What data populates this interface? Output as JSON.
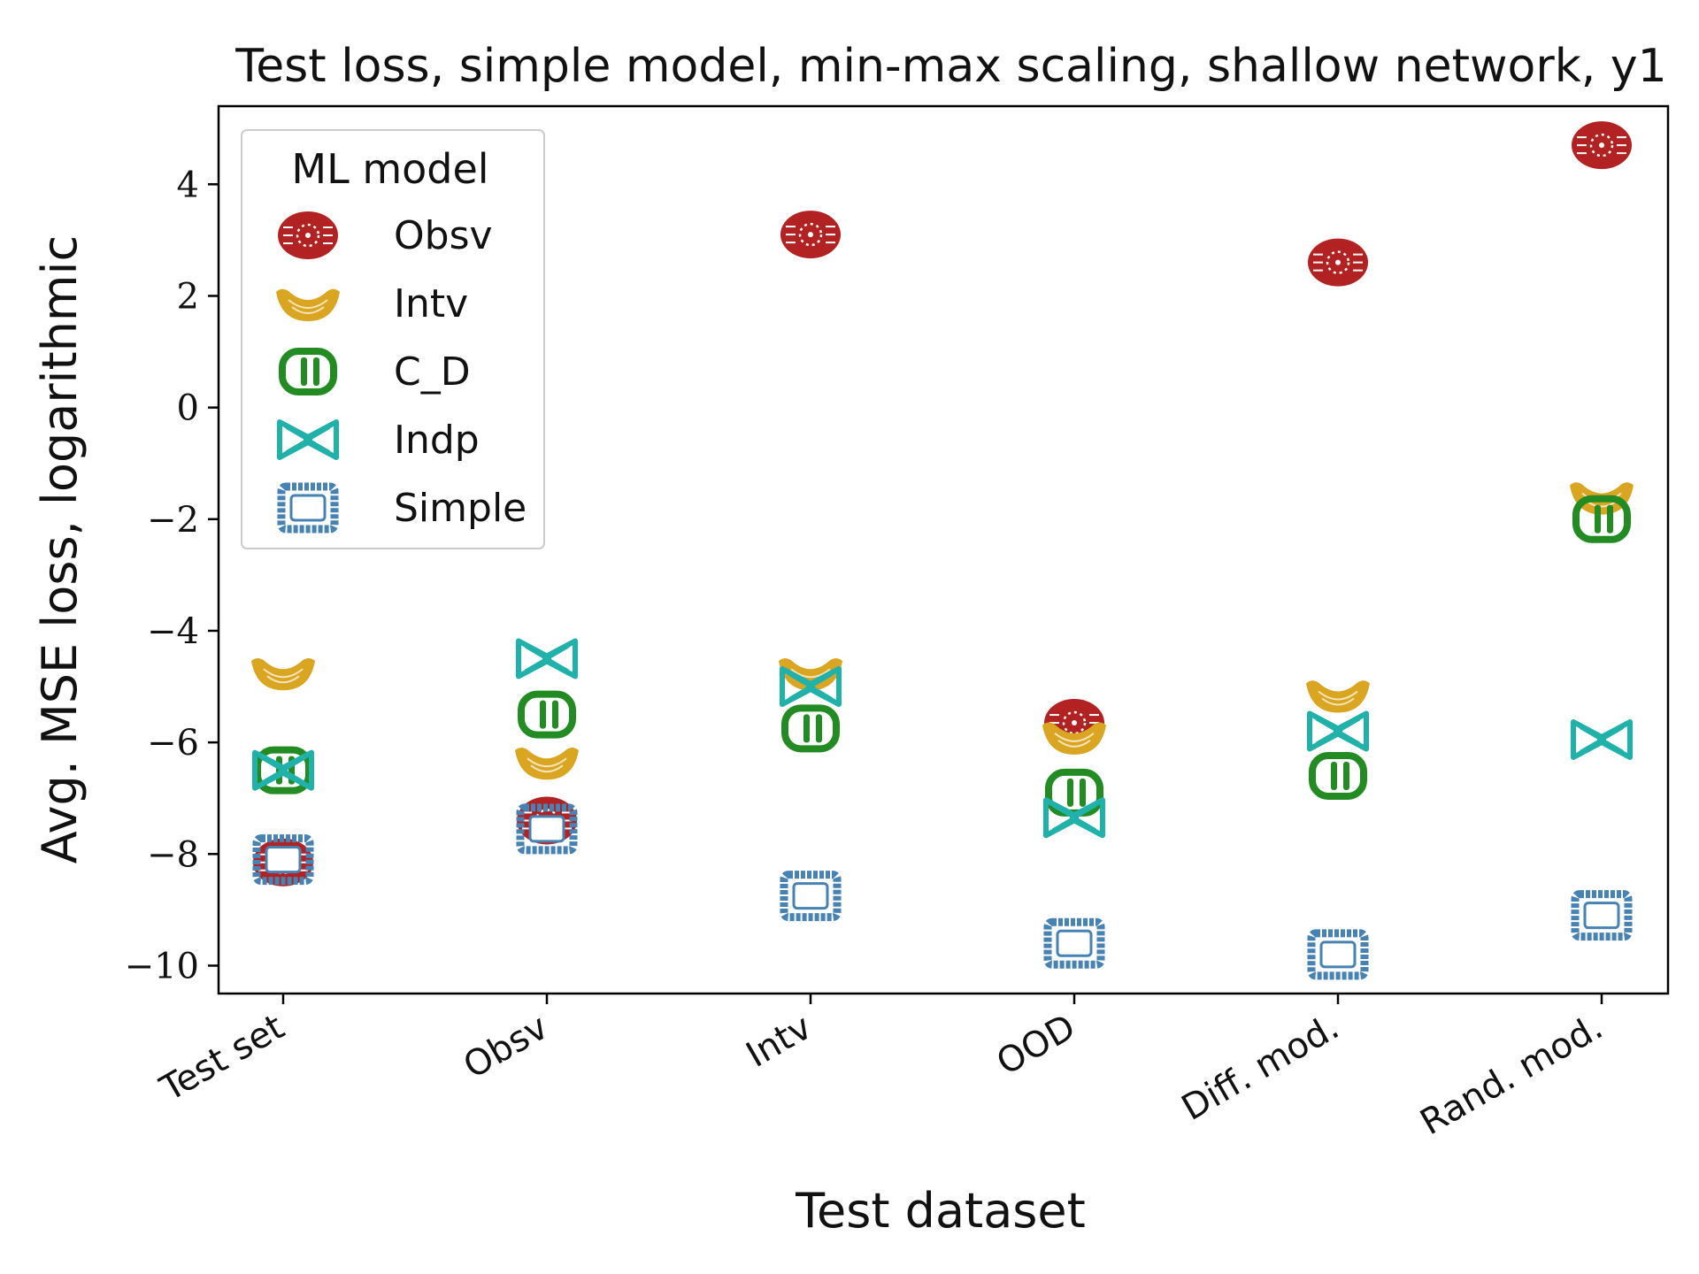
{
  "chart_data": {
    "type": "scatter",
    "title": "Test loss, simple model, min-max scaling, shallow network, y1",
    "xlabel": "Test dataset",
    "ylabel": "Avg. MSE loss, logarithmic",
    "categories": [
      "Test set",
      "Obsv",
      "Intv",
      "OOD",
      "Diff. mod.",
      "Rand. mod."
    ],
    "ylim": [
      -10.5,
      5.4
    ],
    "yticks": [
      -10,
      -8,
      -6,
      -4,
      -2,
      0,
      2,
      4
    ],
    "ytick_labels": [
      "−10",
      "−8",
      "−6",
      "−4",
      "−2",
      "0",
      "2",
      "4"
    ],
    "grid": false,
    "legend": {
      "title": "ML model",
      "position": "top-left"
    },
    "series": [
      {
        "name": "Obsv",
        "color": "#b22222",
        "marker": "round-pasta",
        "values": [
          -8.15,
          -7.4,
          3.1,
          -5.65,
          2.6,
          4.7
        ]
      },
      {
        "name": "Intv",
        "color": "#daa520",
        "marker": "macaroni",
        "values": [
          -4.75,
          -6.35,
          -4.75,
          -5.9,
          -5.15,
          -1.6
        ]
      },
      {
        "name": "C_D",
        "color": "#228b22",
        "marker": "rigatoni",
        "values": [
          -6.5,
          -5.5,
          -5.75,
          -6.9,
          -6.6,
          -2.0
        ]
      },
      {
        "name": "Indp",
        "color": "#20b2aa",
        "marker": "bowtie",
        "values": [
          -6.5,
          -4.5,
          -5.0,
          -7.35,
          -5.8,
          -5.95
        ]
      },
      {
        "name": "Simple",
        "color": "#4682b4",
        "marker": "ravioli",
        "values": [
          -8.1,
          -7.55,
          -8.75,
          -9.6,
          -9.8,
          -9.1
        ]
      }
    ]
  }
}
